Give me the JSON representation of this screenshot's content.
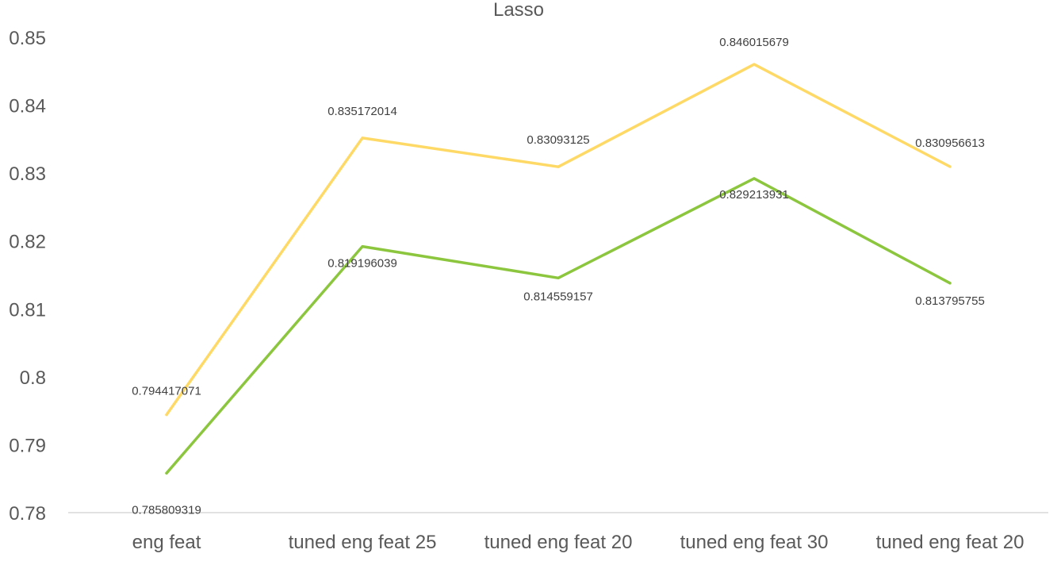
{
  "chart_data": {
    "type": "line",
    "title": "Lasso",
    "xlabel": "",
    "ylabel": "",
    "categories": [
      "eng feat",
      "tuned eng feat 25",
      "tuned eng feat 20",
      "tuned eng feat 30",
      "tuned eng feat 20"
    ],
    "ylim": [
      0.78,
      0.85
    ],
    "yticks": [
      "0.78",
      "0.79",
      "0.8",
      "0.81",
      "0.82",
      "0.83",
      "0.84",
      "0.85"
    ],
    "grid": false,
    "legend": "none",
    "series": [
      {
        "color": "#ffd966",
        "values": [
          0.794417071,
          0.835172014,
          0.83093125,
          0.846015679,
          0.830956613
        ],
        "labels": [
          "0.794417071",
          "0.835172014",
          "0.83093125",
          "0.846015679",
          "0.830956613"
        ]
      },
      {
        "color": "#8cc63e",
        "values": [
          0.785809319,
          0.819196039,
          0.814559157,
          0.829213931,
          0.813795755
        ],
        "labels": [
          "0.785809319",
          "0.819196039",
          "0.814559157",
          "0.829213931",
          "0.813795755"
        ]
      }
    ]
  }
}
